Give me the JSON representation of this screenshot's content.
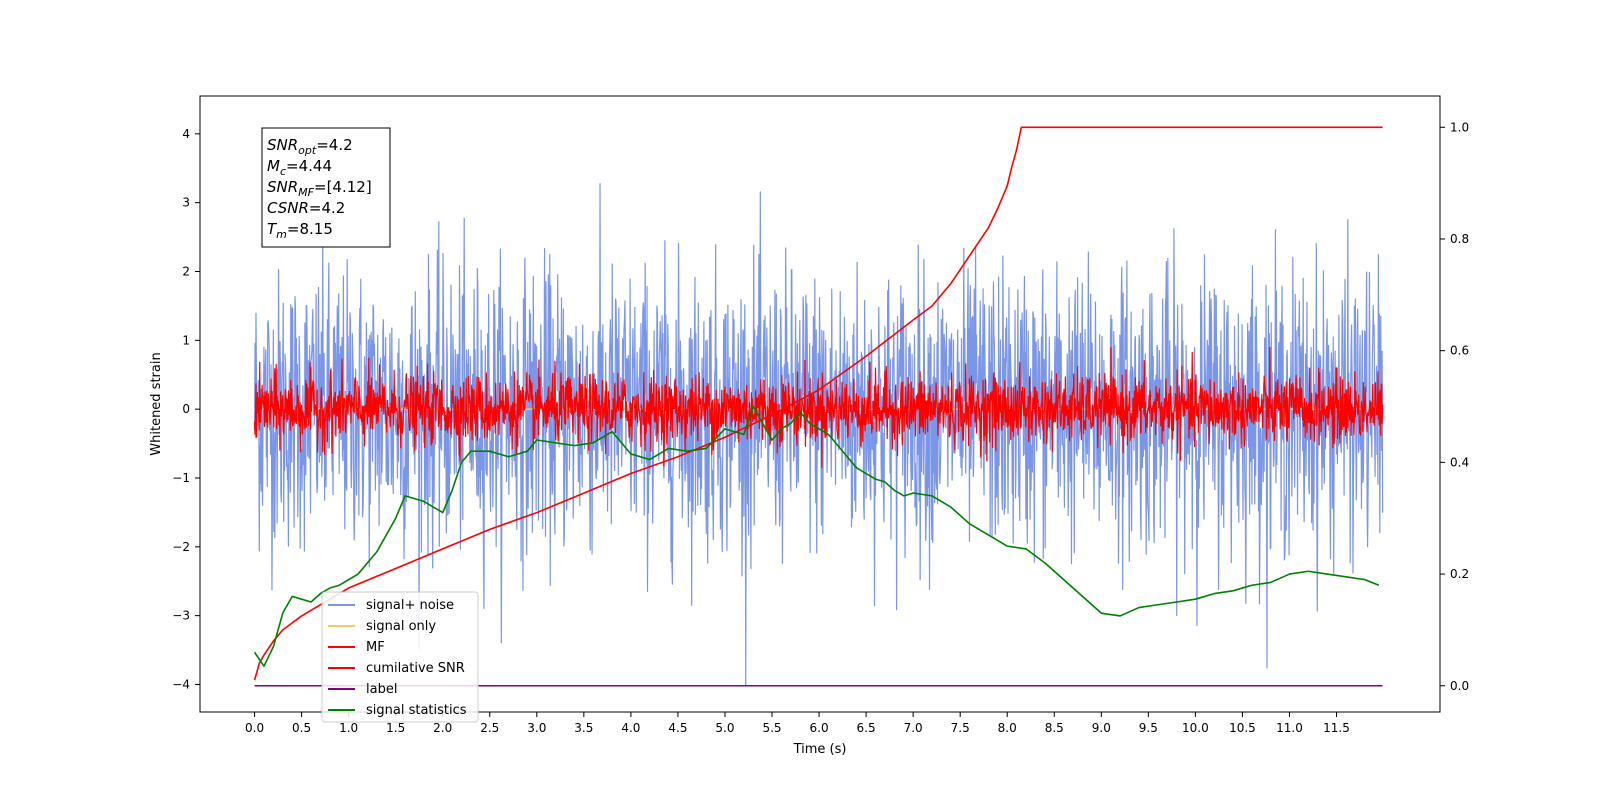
{
  "chart_data": {
    "type": "line",
    "xlabel": "Time (s)",
    "ylabel_left": "Whitened strain",
    "ylabel_right": "",
    "xlim": [
      -0.58,
      12.6
    ],
    "ylim_left": [
      -4.4,
      4.55
    ],
    "ylim_right": [
      -0.047,
      1.056
    ],
    "x_ticks": [
      "0.0",
      "0.5",
      "1.0",
      "1.5",
      "2.0",
      "2.5",
      "3.0",
      "3.5",
      "4.0",
      "4.5",
      "5.0",
      "5.5",
      "6.0",
      "6.5",
      "7.0",
      "7.5",
      "8.0",
      "8.5",
      "9.0",
      "9.5",
      "10.0",
      "10.5",
      "11.0",
      "11.5"
    ],
    "y_ticks_left": [
      "4",
      "3",
      "2",
      "1",
      "0",
      "−1",
      "−2",
      "−3",
      "−4"
    ],
    "y_ticks_right": [
      "1.0",
      "0.8",
      "0.6",
      "0.4",
      "0.2",
      "0.0"
    ],
    "grid": false,
    "legend_position": "lower-left",
    "annotation": {
      "lines": [
        {
          "base": "SNR",
          "sub": "opt",
          "value": "=4.2"
        },
        {
          "base": "M",
          "sub": "c",
          "value": "=4.44"
        },
        {
          "base": "SNR",
          "sub": "MF",
          "value": "=[4.12]"
        },
        {
          "base": "CSNR",
          "sub": "",
          "value": "=4.2"
        },
        {
          "base": "T",
          "sub": "m",
          "value": "=8.15"
        }
      ]
    },
    "series": [
      {
        "name": "signal+ noise",
        "color": "#7b96e8",
        "axis": "left",
        "kind": "noise",
        "amplitude_sd": 1.0,
        "x_range": [
          0.0,
          11.99
        ]
      },
      {
        "name": "signal only",
        "color": "#f5c76a",
        "axis": "left",
        "kind": "flat",
        "value": 0.0,
        "x_range": [
          0.0,
          11.99
        ]
      },
      {
        "name": "MF",
        "color": "#ff0000",
        "axis": "left",
        "kind": "noise",
        "amplitude_sd": 0.25,
        "x_range": [
          0.0,
          11.99
        ]
      },
      {
        "name": "cumilative SNR",
        "color": "#ff0000",
        "axis": "right",
        "x": [
          0.0,
          0.05,
          0.1,
          0.2,
          0.3,
          0.5,
          0.75,
          1.0,
          1.5,
          2.0,
          2.5,
          3.0,
          3.5,
          4.0,
          4.5,
          5.0,
          5.5,
          6.0,
          6.5,
          7.0,
          7.2,
          7.4,
          7.6,
          7.8,
          7.9,
          8.0,
          8.05,
          8.1,
          8.15,
          11.99
        ],
        "y": [
          0.01,
          0.04,
          0.055,
          0.08,
          0.1,
          0.125,
          0.15,
          0.175,
          0.21,
          0.245,
          0.28,
          0.31,
          0.345,
          0.38,
          0.41,
          0.445,
          0.485,
          0.53,
          0.59,
          0.655,
          0.68,
          0.72,
          0.77,
          0.82,
          0.855,
          0.895,
          0.93,
          0.96,
          1.0,
          1.0
        ]
      },
      {
        "name": "label",
        "color": "#800080",
        "axis": "right",
        "kind": "flat",
        "x": [
          0.0,
          11.99
        ],
        "y": [
          0.0,
          0.0
        ]
      },
      {
        "name": "signal statistics",
        "color": "#008000",
        "axis": "right",
        "x": [
          0.0,
          0.1,
          0.2,
          0.3,
          0.4,
          0.5,
          0.6,
          0.7,
          0.8,
          0.9,
          1.0,
          1.1,
          1.2,
          1.3,
          1.4,
          1.5,
          1.6,
          1.7,
          1.8,
          1.9,
          2.0,
          2.1,
          2.2,
          2.3,
          2.4,
          2.5,
          2.6,
          2.7,
          2.8,
          2.9,
          3.0,
          3.2,
          3.4,
          3.6,
          3.8,
          4.0,
          4.2,
          4.4,
          4.6,
          4.8,
          5.0,
          5.1,
          5.2,
          5.3,
          5.4,
          5.5,
          5.6,
          5.7,
          5.8,
          5.9,
          6.0,
          6.1,
          6.2,
          6.3,
          6.4,
          6.5,
          6.6,
          6.7,
          6.8,
          6.9,
          7.0,
          7.2,
          7.4,
          7.6,
          7.8,
          8.0,
          8.2,
          8.4,
          8.6,
          8.8,
          9.0,
          9.2,
          9.4,
          9.6,
          9.8,
          10.0,
          10.2,
          10.4,
          10.6,
          10.8,
          11.0,
          11.2,
          11.4,
          11.6,
          11.8,
          11.95
        ],
        "y": [
          0.06,
          0.035,
          0.07,
          0.13,
          0.16,
          0.155,
          0.15,
          0.165,
          0.175,
          0.18,
          0.19,
          0.2,
          0.22,
          0.24,
          0.27,
          0.3,
          0.34,
          0.335,
          0.33,
          0.32,
          0.31,
          0.35,
          0.4,
          0.42,
          0.42,
          0.42,
          0.415,
          0.41,
          0.415,
          0.42,
          0.44,
          0.435,
          0.43,
          0.435,
          0.455,
          0.415,
          0.405,
          0.425,
          0.42,
          0.425,
          0.46,
          0.455,
          0.45,
          0.5,
          0.47,
          0.44,
          0.46,
          0.47,
          0.49,
          0.47,
          0.46,
          0.45,
          0.43,
          0.41,
          0.39,
          0.38,
          0.37,
          0.365,
          0.35,
          0.34,
          0.345,
          0.34,
          0.32,
          0.29,
          0.27,
          0.25,
          0.245,
          0.22,
          0.19,
          0.16,
          0.13,
          0.125,
          0.14,
          0.145,
          0.15,
          0.155,
          0.165,
          0.17,
          0.18,
          0.185,
          0.2,
          0.205,
          0.2,
          0.195,
          0.19,
          0.18
        ]
      }
    ]
  }
}
